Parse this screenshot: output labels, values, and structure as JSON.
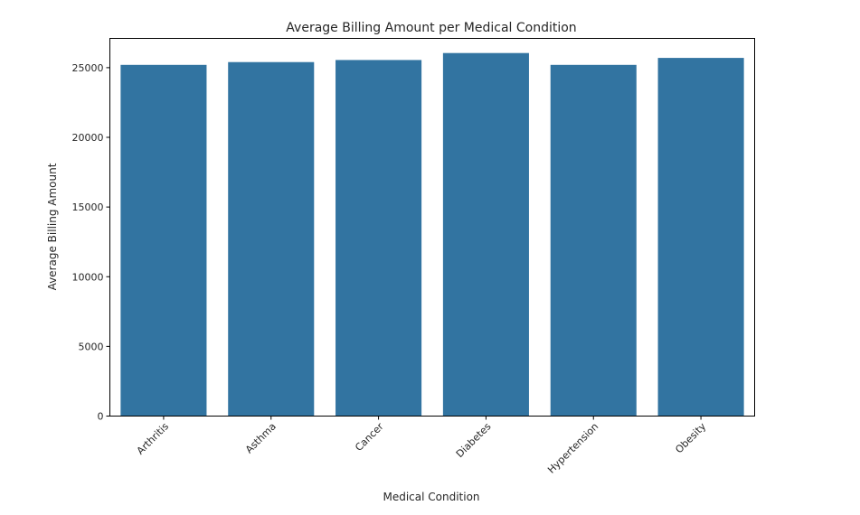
{
  "chart_data": {
    "type": "bar",
    "title": "Average Billing Amount per Medical Condition",
    "xlabel": "Medical Condition",
    "ylabel": "Average Billing Amount",
    "categories": [
      "Arthritis",
      "Asthma",
      "Cancer",
      "Diabetes",
      "Hypertension",
      "Obesity"
    ],
    "values": [
      25200,
      25400,
      25550,
      26050,
      25200,
      25700
    ],
    "ylim": [
      0,
      27100
    ],
    "yticks": [
      0,
      5000,
      10000,
      15000,
      20000,
      25000
    ],
    "ytick_labels": [
      "0",
      "5000",
      "10000",
      "15000",
      "20000",
      "25000"
    ],
    "bar_color": "#3274a1",
    "grid": false,
    "legend": "none"
  }
}
